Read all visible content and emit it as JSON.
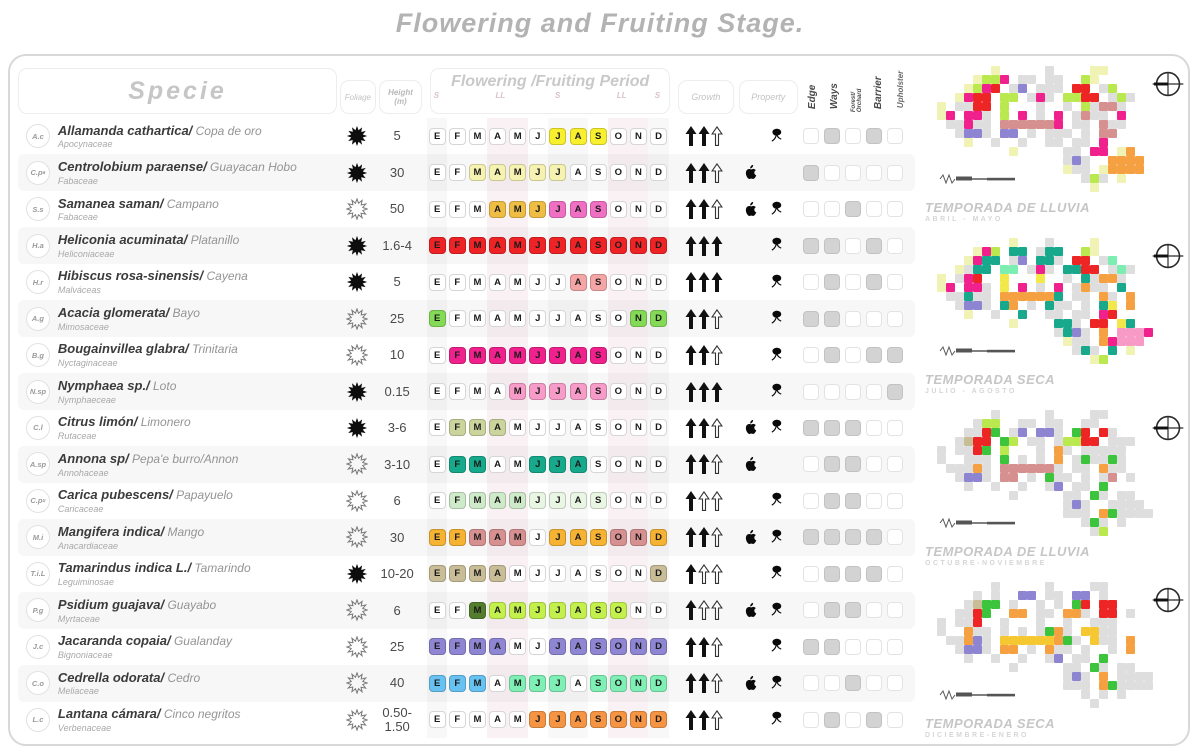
{
  "title": "Flowering and Fruiting Stage.",
  "header": {
    "specie": "Specie",
    "foliage": "Foliage",
    "height": "Height",
    "height_unit": "(m)",
    "period": "Flowering /Fruiting Period",
    "seasons": [
      "S",
      "LL",
      "S",
      "LL",
      "S"
    ],
    "growth": "Growth",
    "property": "Property",
    "uses": [
      "Edge",
      "Ways",
      "Forest/Orchard",
      "Barrier",
      "Upholster"
    ]
  },
  "months": [
    "E",
    "F",
    "M",
    "A",
    "M",
    "J",
    "J",
    "A",
    "S",
    "O",
    "N",
    "D"
  ],
  "rows": [
    {
      "code": "A.c",
      "code_sub": "",
      "species": "Allamanda cathartica",
      "common": "Copa de oro",
      "family": "Apocynaceae",
      "foliage": "solid",
      "height": "5",
      "cells": [
        "",
        "",
        "",
        "",
        "",
        "",
        "#f8ef2f",
        "#f8ef2f",
        "#f8ef2f",
        "",
        "",
        ""
      ],
      "growth": "sso",
      "property": [
        "flower"
      ],
      "uses": [
        0,
        1,
        0,
        1,
        0
      ]
    },
    {
      "code": "C.p",
      "code_sub": "a",
      "species": "Centrolobium paraense",
      "common": "Guayacan Hobo",
      "family": "Fabaceae",
      "foliage": "solid",
      "height": "30",
      "cells": [
        "",
        "",
        "#f6f3b2",
        "#f6f3b2",
        "#f6f3b2",
        "#f6f3b2",
        "#f6f3b2",
        "",
        "",
        "",
        "",
        ""
      ],
      "growth": "sso",
      "property": [
        "apple"
      ],
      "uses": [
        1,
        0,
        0,
        0,
        0
      ]
    },
    {
      "code": "S.s",
      "code_sub": "",
      "species": "Samanea saman",
      "common": "Campano",
      "family": "Fabaceae",
      "foliage": "outline",
      "height": "50",
      "cells": [
        "",
        "",
        "",
        "#eebd44",
        "#eebd44",
        "#eebd44",
        "#ef70c3",
        "#ef70c3",
        "#ef70c3",
        "",
        "",
        ""
      ],
      "growth": "sso",
      "property": [
        "apple",
        "flower"
      ],
      "uses": [
        0,
        0,
        1,
        0,
        0
      ]
    },
    {
      "code": "H.a",
      "code_sub": "",
      "species": "Heliconia acuminata",
      "common": "Platanillo",
      "family": "Heliconiaceae",
      "foliage": "solid",
      "height": "1.6-4",
      "cells": [
        "#ee2326",
        "#ee2326",
        "#ee2326",
        "#ee2326",
        "#ee2326",
        "#ee2326",
        "#ee2326",
        "#ee2326",
        "#ee2326",
        "#ee2326",
        "#ee2326",
        "#ee2326"
      ],
      "growth": "sss",
      "property": [
        "flower"
      ],
      "uses": [
        1,
        1,
        0,
        1,
        0
      ]
    },
    {
      "code": "H.r",
      "code_sub": "",
      "species": "Hibiscus rosa-sinensis",
      "common": "Cayena",
      "family": "Malváceas",
      "foliage": "solid",
      "height": "5",
      "cells": [
        "",
        "",
        "",
        "",
        "",
        "",
        "",
        "#f4a5a5",
        "#f4a5a5",
        "",
        "",
        ""
      ],
      "growth": "sss",
      "property": [
        "flower"
      ],
      "uses": [
        0,
        1,
        0,
        1,
        0
      ]
    },
    {
      "code": "A.g",
      "code_sub": "",
      "species": "Acacia glomerata",
      "common": "Bayo",
      "family": "Mimosaceae",
      "foliage": "outline",
      "height": "25",
      "cells": [
        "#84d957",
        "",
        "",
        "",
        "",
        "",
        "",
        "",
        "",
        "",
        "#84d957",
        "#84d957"
      ],
      "growth": "sso",
      "property": [
        "flower"
      ],
      "uses": [
        1,
        1,
        0,
        0,
        0
      ]
    },
    {
      "code": "B.g",
      "code_sub": "",
      "species": "Bougainvillea glabra",
      "common": "Trinitaria",
      "family": "Nyctaginaceae",
      "foliage": "outline",
      "height": "10",
      "cells": [
        "",
        "#f0218c",
        "#f0218c",
        "#f0218c",
        "#f0218c",
        "#f0218c",
        "#f0218c",
        "#f0218c",
        "#f0218c",
        "",
        "",
        ""
      ],
      "growth": "sso",
      "property": [
        "flower"
      ],
      "uses": [
        0,
        1,
        0,
        1,
        1
      ]
    },
    {
      "code": "N.sp",
      "code_sub": "",
      "species": "Nymphaea sp.",
      "common": "Loto",
      "family": "Nymphaeceae",
      "foliage": "solid",
      "height": "0.15",
      "cells": [
        "",
        "",
        "",
        "",
        "#f79cc8",
        "#f79cc8",
        "#f79cc8",
        "#f79cc8",
        "#f79cc8",
        "",
        "",
        ""
      ],
      "growth": "sss",
      "property": [
        "flower"
      ],
      "uses": [
        0,
        0,
        0,
        0,
        1
      ]
    },
    {
      "code": "C.l",
      "code_sub": "",
      "species": "Citrus limón",
      "common": "Limonero",
      "family": "Rutaceae",
      "foliage": "solid",
      "height": "3-6",
      "cells": [
        "",
        "#ccd49d",
        "#ccd49d",
        "#ccd49d",
        "",
        "",
        "",
        "",
        "",
        "",
        "",
        ""
      ],
      "growth": "sso",
      "property": [
        "apple",
        "flower"
      ],
      "uses": [
        1,
        1,
        1,
        0,
        0
      ]
    },
    {
      "code": "A.sp",
      "code_sub": "",
      "species": "Annona sp",
      "common": "Pepa'e burro/Annon",
      "family": "Annohaceae",
      "foliage": "outline",
      "height": "3-10",
      "cells": [
        "",
        "#17a98b",
        "#17a98b",
        "",
        "",
        "#17a98b",
        "#17a98b",
        "#17a98b",
        "",
        "",
        "",
        ""
      ],
      "growth": "sso",
      "property": [
        "apple"
      ],
      "uses": [
        0,
        1,
        1,
        0,
        0
      ]
    },
    {
      "code": "C.p",
      "code_sub": "u",
      "species": "Carica pubescens",
      "common": "Papayuelo",
      "family": "Caricaceae",
      "foliage": "outline",
      "height": "6",
      "cells": [
        "",
        "#cfeac8",
        "#cfeac8",
        "#cfeac8",
        "#cfeac8",
        "#e9f6e4",
        "#e9f6e4",
        "#e9f6e4",
        "#e9f6e4",
        "",
        "",
        ""
      ],
      "growth": "soo",
      "property": [
        "flower"
      ],
      "uses": [
        0,
        1,
        1,
        0,
        0
      ]
    },
    {
      "code": "M.i",
      "code_sub": "",
      "species": "Mangifera indica",
      "common": "Mango",
      "family": "Anacardiaceae",
      "foliage": "outline",
      "height": "30",
      "cells": [
        "#f5b233",
        "#f5b233",
        "#d79090",
        "#d79090",
        "#d79090",
        "",
        "#f5b233",
        "#f5b233",
        "#f5b233",
        "#d79090",
        "#d79090",
        "#f5b233"
      ],
      "growth": "sso",
      "property": [
        "apple",
        "flower"
      ],
      "uses": [
        1,
        1,
        1,
        1,
        0
      ]
    },
    {
      "code": "T.i.L",
      "code_sub": "",
      "species": "Tamarindus indica L.",
      "common": "Tamarindo",
      "family": "Leguiminosae",
      "foliage": "solid",
      "height": "10-20",
      "cells": [
        "#c9bd98",
        "#c9bd98",
        "#c9bd98",
        "#c9bd98",
        "",
        "",
        "",
        "",
        "",
        "",
        "",
        "#c9bd98"
      ],
      "growth": "soo",
      "property": [
        "flower"
      ],
      "uses": [
        0,
        1,
        1,
        1,
        0
      ]
    },
    {
      "code": "P.g",
      "code_sub": "",
      "species": "Psidium guajava",
      "common": "Guayabo",
      "family": "Myrtaceae",
      "foliage": "outline",
      "height": "6",
      "cells": [
        "",
        "",
        "#557d2e",
        "#c4f04e",
        "#c4f04e",
        "#c4f04e",
        "#c4f04e",
        "#c4f04e",
        "#c4f04e",
        "#c4f04e",
        "",
        ""
      ],
      "growth": "soo",
      "property": [
        "apple",
        "flower"
      ],
      "uses": [
        0,
        1,
        1,
        0,
        0
      ]
    },
    {
      "code": "J.c",
      "code_sub": "",
      "species": "Jacaranda copaia",
      "common": "Gualanday",
      "family": "Bignoniaceae",
      "foliage": "outline",
      "height": "25",
      "cells": [
        "#8e86d3",
        "#8e86d3",
        "#8e86d3",
        "#8e86d3",
        "",
        "",
        "#8e86d3",
        "#8e86d3",
        "#8e86d3",
        "#8e86d3",
        "#8e86d3",
        "#8e86d3"
      ],
      "growth": "sso",
      "property": [
        "flower"
      ],
      "uses": [
        1,
        1,
        0,
        0,
        0
      ]
    },
    {
      "code": "C.o",
      "code_sub": "",
      "species": "Cedrella odorata",
      "common": "Cedro",
      "family": "Meliaceae",
      "foliage": "outline",
      "height": "40",
      "cells": [
        "#67c1f1",
        "#67c1f1",
        "#67c1f1",
        "",
        "#7fefb5",
        "#7fefb5",
        "#7fefb5",
        "",
        "#7fefb5",
        "#7fefb5",
        "#7fefb5",
        "#7fefb5"
      ],
      "growth": "sso",
      "property": [
        "apple",
        "flower"
      ],
      "uses": [
        0,
        0,
        1,
        0,
        0
      ]
    },
    {
      "code": "L.c",
      "code_sub": "",
      "species": "Lantana cámara",
      "common": "Cinco negritos",
      "family": "Verbenaceae",
      "foliage": "outline",
      "height": "0.50-1.50",
      "cells": [
        "",
        "",
        "",
        "",
        "",
        "#f59544",
        "#f59544",
        "#f59544",
        "#f59544",
        "#f59544",
        "#f59544",
        "#f59544"
      ],
      "growth": "sso",
      "property": [
        "flower"
      ],
      "uses": [
        0,
        1,
        0,
        1,
        0
      ]
    }
  ],
  "map_palette": {
    "#": "#ededed",
    "g": "#dedede",
    "y": "#f1f3b4",
    "G": "#b9e84f",
    "r": "#ee2525",
    "m": "#f0218c",
    "p": "#f79ac6",
    "R": "#d69090",
    "P": "#8e85d2",
    "o": "#f5a142",
    "t": "#18a98c",
    "Y": "#f3e84a",
    "n": "#3cc43c",
    "M": "#7deeb2",
    "k": "#c9bd96",
    "b": "#64c0f0",
    "O": "#f5c832"
  },
  "maps": [
    {
      "title": "TEMPORADA DE LLUVIA",
      "subtitle": "ABRIL - MAYO",
      "grid": [
        "......y.....g....yy.....",
        "....yGGm.gg.gg..Gy......",
        "...yGmr.gP.ggg.rr.gG....",
        "..ymrr.GG.gmg.GGrr.gGg..",
        "y.ggrr.G...g..g.GgRRg...",
        "ym.mmg.G.m.g.m.gRgg.m...",
        ".ggmgg.RRRRRRm.gg.Rgg...",
        "..gPPg.PP.g.ggg.g.RR....",
        "...y..g..g..gg.gg.m.....",
        "........y.....gg.mm.yo..",
        "..............gPg..oooo.",
        "..............ygg.yoooo.",
        "................gGg.y...",
        ".................y......"
      ]
    },
    {
      "title": "TEMPORADA SECA",
      "subtitle": "JULIO -  AGOSTO",
      "grid": [
        "........y...g....y......",
        "....ymG.tt.gtt..Gy......",
        "...ymtt.gP.ttg.rr.gM....",
        "..ygtt.MM.gmg.ttrr.gMg..",
        "y.gmr..Y...Y..g.tgoog...",
        "ym.mmg.Y.m.g.m.gogg.t...",
        ".ggtgg.oooooot.gg.og.o..",
        "..gPPg.to.g.tgg.g.tY.o..",
        "...y..g..t..gg.gg.mr....",
        "........y....ttg.rr.Yt..",
        ".............gtPg.o.pppm",
        "..............ygg.omppp.",
        "...............gtg.t.y..",
        ".................yG....."
      ]
    },
    {
      "title": "TEMPORADA DE LLUVIA",
      "subtitle": "OCTUBRE-NOVIEMBRE",
      "grid": [
        "......g.....g....gg.....",
        "....gGG..gg.gg..gg......",
        "...ggrn.gP.PPg.nr.rg....",
        "..gkrr.nG.gg.gGGrr.ggg..",
        "g.ggrn.G...g.og.ggggg...",
        "g..ggg.n.g.g.o.gnggng...",
        ".gggog.RRRRRRg.gg.ogg...",
        "..gPPg.RR.g.ngg.g.gR.g..",
        "...g..g..g..gP.gg.n.....",
        "........g.....gg.ng.gg..",
        "..............gPg..gggg.",
        "..............ggg.ongggg",
        "................gng.g...",
        ".................gG....."
      ]
    },
    {
      "title": "TEMPORADA SECA",
      "subtitle": "DICIEMBRE-ENERO",
      "grid": [
        "......g.....g....gg.....",
        "....g.g..PP.gg.PP.g.....",
        "...gknn.g..g.g.nr.rr....",
        "..ggrn..oo.gg.oog.rr.g..",
        "g.ggr..g...g..g..ggg....",
        "g..ogg.g.g.gnog.OOgg....",
        ".ggoPg.OOOOOOong.Ogg.o..",
        "..gPPg.oo.g.ogg.g..g.o..",
        "...g..g..g..gP.gg.n.....",
        "........g.....gg.ng.gg..",
        "..............gPg.o.gggg",
        "..............ggg.ongggg",
        "................g.g.g...",
        ".................g......"
      ]
    }
  ],
  "chart_data": {
    "type": "table",
    "title": "Flowering and Fruiting Stage.",
    "columns": [
      "Specie",
      "Family",
      "Foliage",
      "Height (m)",
      "Flowering/Fruiting months",
      "Growth (filled arrows of 3)",
      "Property",
      "Edge",
      "Ways",
      "Forest/Orchard",
      "Barrier",
      "Upholster"
    ],
    "month_labels": [
      "E",
      "F",
      "M",
      "A",
      "M",
      "J",
      "J",
      "A",
      "S",
      "O",
      "N",
      "D"
    ],
    "rows": [
      {
        "specie": "Allamanda cathartica",
        "height_m": "5",
        "active": "Jul-Sep",
        "growth": 2,
        "property": "flower"
      },
      {
        "specie": "Centrolobium paraense",
        "height_m": "30",
        "active": "Mar-Jul",
        "growth": 2,
        "property": "fruit"
      },
      {
        "specie": "Samanea saman",
        "height_m": "50",
        "active": "Apr-Jun, Jul-Sep",
        "growth": 2,
        "property": "fruit+flower"
      },
      {
        "specie": "Heliconia acuminata",
        "height_m": "1.6-4",
        "active": "Jan-Dec",
        "growth": 3,
        "property": "flower"
      },
      {
        "specie": "Hibiscus rosa-sinensis",
        "height_m": "5",
        "active": "Aug-Sep",
        "growth": 3,
        "property": "flower"
      },
      {
        "specie": "Acacia glomerata",
        "height_m": "25",
        "active": "Jan, Nov-Dec",
        "growth": 2,
        "property": "flower"
      },
      {
        "specie": "Bougainvillea glabra",
        "height_m": "10",
        "active": "Feb-Sep",
        "growth": 2,
        "property": "flower"
      },
      {
        "specie": "Nymphaea sp.",
        "height_m": "0.15",
        "active": "May-Sep",
        "growth": 3,
        "property": "flower"
      },
      {
        "specie": "Citrus limón",
        "height_m": "3-6",
        "active": "Feb-Apr",
        "growth": 2,
        "property": "fruit+flower"
      },
      {
        "specie": "Annona sp",
        "height_m": "3-10",
        "active": "Feb-Mar, Jun-Aug",
        "growth": 2,
        "property": "fruit"
      },
      {
        "specie": "Carica pubescens",
        "height_m": "6",
        "active": "Feb-May, Jun-Sep",
        "growth": 1,
        "property": "flower"
      },
      {
        "specie": "Mangifera indica",
        "height_m": "30",
        "active": "Jan-Feb, Mar-May, Jul-Sep, Oct-Dec",
        "growth": 2,
        "property": "fruit+flower"
      },
      {
        "specie": "Tamarindus indica L.",
        "height_m": "10-20",
        "active": "Jan-Apr, Dec",
        "growth": 1,
        "property": "flower"
      },
      {
        "specie": "Psidium guajava",
        "height_m": "6",
        "active": "Mar-Oct",
        "growth": 1,
        "property": "fruit+flower"
      },
      {
        "specie": "Jacaranda copaia",
        "height_m": "25",
        "active": "Jan-Apr, Jul-Dec",
        "growth": 2,
        "property": "flower"
      },
      {
        "specie": "Cedrella odorata",
        "height_m": "40",
        "active": "Jan-Mar, May-Jul, Sep-Dec",
        "growth": 2,
        "property": "fruit+flower"
      },
      {
        "specie": "Lantana cámara",
        "height_m": "0.50-1.50",
        "active": "Jun-Dec",
        "growth": 2,
        "property": "flower"
      }
    ]
  }
}
